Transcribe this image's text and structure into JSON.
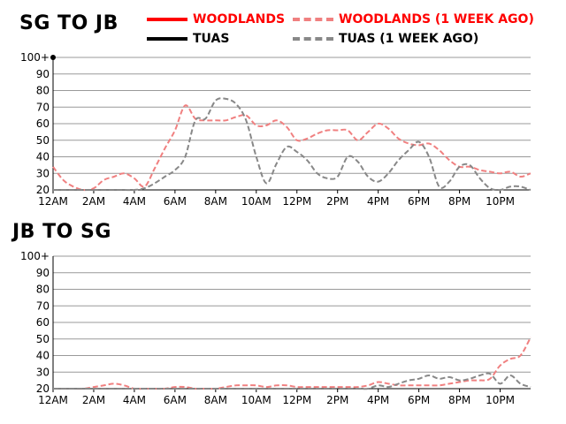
{
  "legend": {
    "woodlands": "WOODLANDS",
    "woodlands_week": "WOODLANDS (1 WEEK AGO)",
    "tuas": "TUAS",
    "tuas_week": "TUAS (1 WEEK AGO)"
  },
  "colors": {
    "woodlands": "#ff0000",
    "woodlands_week": "#f08080",
    "tuas": "#000000",
    "tuas_week": "#888888",
    "grid": "#999999"
  },
  "chart_data": [
    {
      "type": "line",
      "title": "SG TO JB",
      "xlabel": "",
      "ylabel": "",
      "xlim": [
        0,
        23.5
      ],
      "ylim": [
        20,
        100
      ],
      "x_ticks": [
        0,
        2,
        4,
        6,
        8,
        10,
        12,
        14,
        16,
        18,
        20,
        22
      ],
      "x_tick_labels": [
        "12AM",
        "2AM",
        "4AM",
        "6AM",
        "8AM",
        "10AM",
        "12PM",
        "2PM",
        "4PM",
        "6PM",
        "8PM",
        "10PM"
      ],
      "y_ticks": [
        20,
        30,
        40,
        50,
        60,
        70,
        80,
        90,
        100
      ],
      "y_tick_labels": [
        "20",
        "30",
        "40",
        "50",
        "60",
        "70",
        "80",
        "90",
        "100+"
      ],
      "grid": true,
      "x": [
        0,
        0.5,
        1,
        1.5,
        2,
        2.5,
        3,
        3.5,
        4,
        4.5,
        5,
        5.5,
        6,
        6.5,
        7,
        7.5,
        8,
        8.5,
        9,
        9.5,
        10,
        10.5,
        11,
        11.5,
        12,
        12.5,
        13,
        13.5,
        14,
        14.5,
        15,
        15.5,
        16,
        16.5,
        17,
        17.5,
        18,
        18.5,
        19,
        19.5,
        20,
        20.5,
        21,
        21.5,
        22,
        22.5,
        23,
        23.5
      ],
      "series": [
        {
          "name": "WOODLANDS (1 WEEK AGO)",
          "key": "woodlands_week",
          "values": [
            34,
            26,
            22,
            20,
            21,
            26,
            28,
            30,
            27,
            22,
            33,
            45,
            56,
            71,
            63,
            62,
            62,
            62,
            64,
            65,
            59,
            59,
            62,
            58,
            50,
            51,
            54,
            56,
            56,
            56,
            50,
            55,
            60,
            57,
            51,
            48,
            47,
            48,
            44,
            38,
            34,
            34,
            32,
            31,
            30,
            31,
            28,
            30
          ]
        },
        {
          "name": "TUAS (1 WEEK AGO)",
          "key": "tuas_week",
          "values": [
            20,
            20,
            20,
            20,
            20,
            20,
            20,
            20,
            20,
            21,
            24,
            28,
            32,
            40,
            62,
            63,
            74,
            75,
            72,
            62,
            40,
            24,
            36,
            46,
            43,
            38,
            30,
            27,
            28,
            40,
            37,
            28,
            25,
            30,
            38,
            44,
            49,
            40,
            22,
            25,
            34,
            35,
            27,
            21,
            20,
            22,
            22,
            20
          ]
        }
      ]
    },
    {
      "type": "line",
      "title": "JB TO SG",
      "xlabel": "",
      "ylabel": "",
      "xlim": [
        0,
        23.5
      ],
      "ylim": [
        20,
        100
      ],
      "x_ticks": [
        0,
        2,
        4,
        6,
        8,
        10,
        12,
        14,
        16,
        18,
        20,
        22
      ],
      "x_tick_labels": [
        "12AM",
        "2AM",
        "4AM",
        "6AM",
        "8AM",
        "10AM",
        "12PM",
        "2PM",
        "4PM",
        "6PM",
        "8PM",
        "10PM"
      ],
      "y_ticks": [
        20,
        30,
        40,
        50,
        60,
        70,
        80,
        90,
        100
      ],
      "y_tick_labels": [
        "20",
        "30",
        "40",
        "50",
        "60",
        "70",
        "80",
        "90",
        "100+"
      ],
      "grid": true,
      "x": [
        0,
        0.5,
        1,
        1.5,
        2,
        2.5,
        3,
        3.5,
        4,
        4.5,
        5,
        5.5,
        6,
        6.5,
        7,
        7.5,
        8,
        8.5,
        9,
        9.5,
        10,
        10.5,
        11,
        11.5,
        12,
        12.5,
        13,
        13.5,
        14,
        14.5,
        15,
        15.5,
        16,
        16.5,
        17,
        17.5,
        18,
        18.5,
        19,
        19.5,
        20,
        20.5,
        21,
        21.5,
        22,
        22.5,
        23,
        23.5
      ],
      "series": [
        {
          "name": "WOODLANDS (1 WEEK AGO)",
          "key": "woodlands_week",
          "values": [
            20,
            20,
            20,
            20,
            21,
            22,
            23,
            22,
            20,
            20,
            20,
            20,
            21,
            21,
            20,
            20,
            20,
            21,
            22,
            22,
            22,
            21,
            22,
            22,
            21,
            21,
            21,
            21,
            21,
            21,
            21,
            22,
            24,
            23,
            22,
            22,
            22,
            22,
            22,
            23,
            24,
            25,
            25,
            26,
            34,
            38,
            40,
            51
          ]
        },
        {
          "name": "TUAS (1 WEEK AGO)",
          "key": "tuas_week",
          "values": [
            20,
            20,
            20,
            20,
            20,
            20,
            20,
            20,
            20,
            20,
            20,
            20,
            20,
            20,
            20,
            20,
            20,
            20,
            20,
            20,
            20,
            20,
            20,
            20,
            20,
            20,
            20,
            20,
            20,
            20,
            20,
            20,
            22,
            21,
            23,
            25,
            26,
            28,
            26,
            27,
            25,
            26,
            28,
            29,
            23,
            28,
            23,
            21
          ]
        }
      ]
    }
  ]
}
